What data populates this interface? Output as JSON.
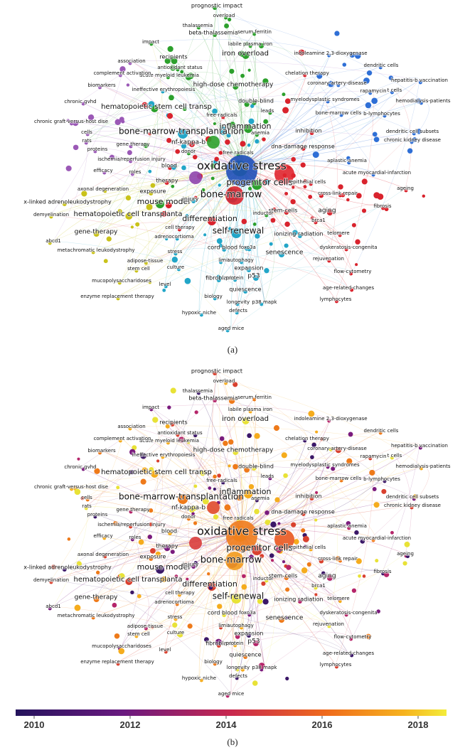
{
  "keywords": [
    "prognostic impact",
    "overload",
    "thalassemia",
    "beta-thalassemia",
    "serum ferritin",
    "labile plasma iron",
    "impact",
    "recipients",
    "association",
    "iron overload",
    "indoleamine 2,3-dioxygenase",
    "antioxidant status",
    "acute myeloid leukemia",
    "chelation therapy",
    "dendritic cells",
    "complement activation",
    "hepatitis-b vaccination",
    "coronary-artery-disease",
    "biomarkers",
    "ineffective erythropoiesis",
    "high-dose chemotherapy",
    "rapamycin",
    "t cells",
    "chronic gvhd",
    "myelodysplastic syndromes",
    "hemodialysis-patients",
    "hematopoietic stem cell transp",
    "double-blind",
    "leads",
    "bone-marrow cells",
    "b-lymphocytes",
    "free-radicals",
    "chronic graft-versus-host dise",
    "bone-marrow-transplantation",
    "inflammation",
    "anemia",
    "inhibition",
    "dendritic cell subsets",
    "chronic kidney disease",
    "cells",
    "rats",
    "nf-kappa-b",
    "gene therapy",
    "dna-damage response",
    "proteins",
    "free radicals",
    "ischemia/reperfusion injury",
    "donor",
    "oxidative stress",
    "aplastic-anemia",
    "efficacy",
    "blood",
    "roles",
    "acute myocardial-infarction",
    "progenitor cells",
    "therapy",
    "axonal degeneration",
    "exposure",
    "epithelial cells",
    "ageing",
    "bone-marrow",
    "x-linked adrenoleukodystrophy",
    "mouse model",
    "injury",
    "cross-link repair",
    "fibrosis",
    "demyelination",
    "hematopoietic cell transplanta",
    "stem-cells",
    "inductor",
    "aging",
    "differentiation",
    "brca1",
    "telomere",
    "gene-therapy",
    "cell therapy",
    "self-renewal",
    "ionizing radiation",
    "adrenocortioma",
    "abcd1",
    "dyskeratosis-congenita",
    "metachromatic leukodystrophy",
    "stress",
    "cord blood",
    "foxo3a",
    "senescence",
    "rejuvenation",
    "adipose-tissue",
    "limit",
    "autophagy",
    "expansion",
    "p53",
    "stem cell",
    "culture",
    "flow-cytometry",
    "fibroblasts",
    "protein",
    "mucopolysaccharidoses",
    "level",
    "quiescence",
    "age-related-changes",
    "enzyme replacement therapy",
    "biology",
    "longevity",
    "p38 mapk",
    "lymphocytes",
    "hypoxic niche",
    "defects",
    "aged mice"
  ],
  "captions": [
    "(a)",
    "(b)"
  ],
  "colorbar": {
    "ticks": [
      2010,
      2012,
      2014,
      2016,
      2018
    ]
  }
}
